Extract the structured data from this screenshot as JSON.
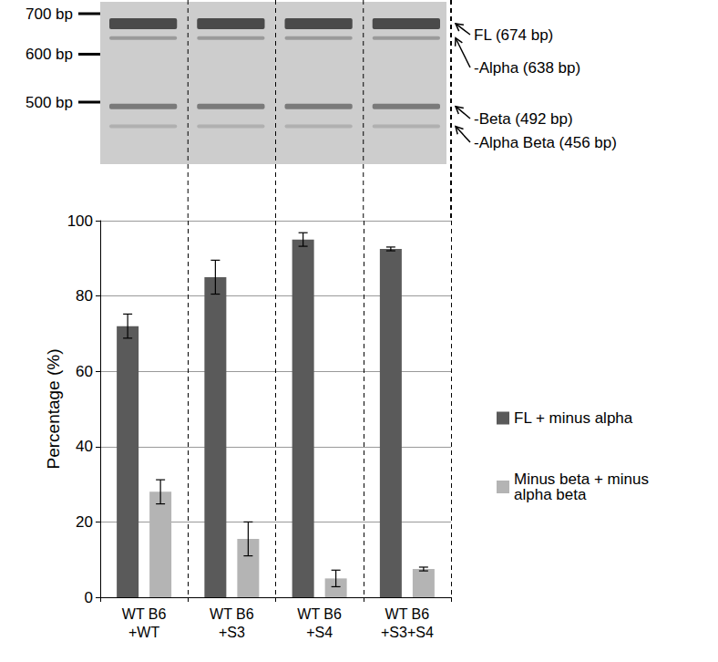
{
  "chart_data": {
    "type": "bar",
    "categories": [
      "WT B6\n+WT",
      "WT B6\n+S3",
      "WT B6\n+S4",
      "WT B6\n+S3+S4"
    ],
    "series": [
      {
        "name": "FL + minus alpha",
        "color": "#5a5a5a",
        "values": [
          72,
          85,
          95,
          92.5
        ],
        "errors": [
          3.2,
          4.5,
          1.8,
          0.5
        ]
      },
      {
        "name": "Minus beta + minus alpha beta",
        "color": "#b4b4b4",
        "values": [
          28,
          15.5,
          5,
          7.5
        ],
        "errors": [
          3.2,
          4.5,
          2.2,
          0.5
        ]
      }
    ],
    "y_label": "Percentage (%)",
    "ylim": [
      0,
      100
    ],
    "yticks": [
      0,
      20,
      40,
      60,
      80,
      100
    ],
    "grid": true,
    "legend": "right"
  },
  "gel": {
    "markers": [
      {
        "value": 700,
        "label": "700 bp"
      },
      {
        "value": 600,
        "label": "600 bp"
      },
      {
        "value": 500,
        "label": "500 bp"
      }
    ],
    "bands": [
      {
        "label": "FL (674 bp)",
        "bp": 674
      },
      {
        "label": "-Alpha (638 bp)",
        "bp": 638
      },
      {
        "label": "-Beta (492 bp)",
        "bp": 492
      },
      {
        "label": "-Alpha Beta (456 bp)",
        "bp": 456
      }
    ]
  }
}
